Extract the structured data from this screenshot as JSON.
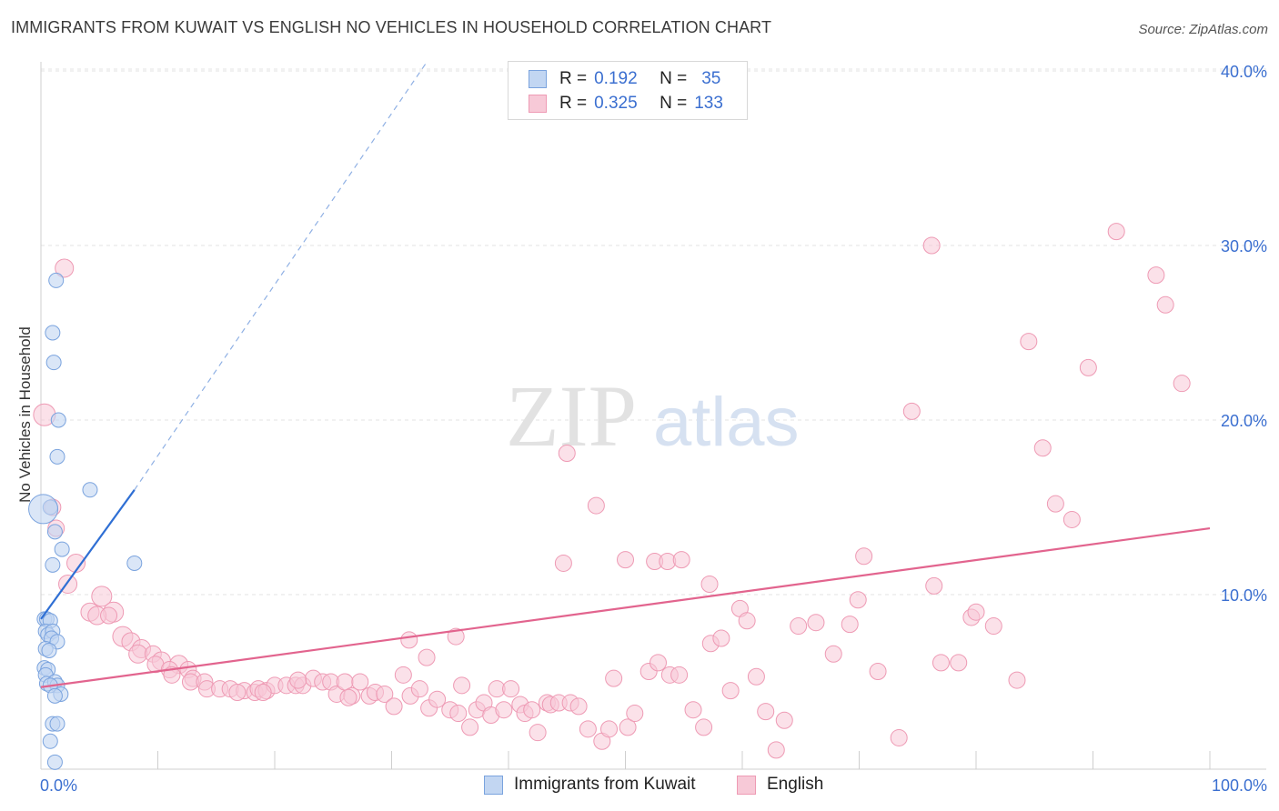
{
  "title": "IMMIGRANTS FROM KUWAIT VS ENGLISH NO VEHICLES IN HOUSEHOLD CORRELATION CHART",
  "source": "Source: ZipAtlas.com",
  "watermark": {
    "zip": "ZIP",
    "atlas": "atlas"
  },
  "legend": {
    "row1": {
      "r_label": "R =",
      "r_value": "0.192",
      "n_label": "N =",
      "n_value": "35"
    },
    "row2": {
      "r_label": "R =",
      "r_value": "0.325",
      "n_label": "N =",
      "n_value": "133"
    }
  },
  "colors": {
    "blue_fill": "#c2d6f2",
    "blue_stroke": "#7aa3de",
    "blue_line": "#2f6fd4",
    "pink_fill": "#f7c9d7",
    "pink_stroke": "#ee9ab4",
    "pink_line": "#e2648e",
    "tick_label": "#3b6fd0",
    "grid": "#e3e3e3"
  },
  "chart_data": {
    "type": "scatter",
    "title": "IMMIGRANTS FROM KUWAIT VS ENGLISH NO VEHICLES IN HOUSEHOLD CORRELATION CHART",
    "xlabel": "",
    "ylabel": "No Vehicles in Household",
    "xlim": [
      0,
      100
    ],
    "ylim": [
      0,
      42
    ],
    "x_tick_labels": [
      "0.0%",
      "100.0%"
    ],
    "y_ticks": [
      10,
      20,
      30,
      40
    ],
    "y_tick_labels": [
      "10.0%",
      "20.0%",
      "30.0%",
      "40.0%"
    ],
    "grid": true,
    "legend_position": "top-center",
    "series": [
      {
        "name": "Immigrants from Kuwait",
        "color": "#7aa3de",
        "r": 0.192,
        "n": 35,
        "trend": {
          "x": [
            0,
            8.0
          ],
          "y": [
            8.6,
            16.0
          ],
          "dashed_to": {
            "x": 33.0,
            "y": 40.5
          }
        },
        "points": [
          [
            1.3,
            28.0
          ],
          [
            1.0,
            25.0
          ],
          [
            1.1,
            23.3
          ],
          [
            1.5,
            20.0
          ],
          [
            1.4,
            17.9
          ],
          [
            4.2,
            16.0
          ],
          [
            0.8,
            15.0
          ],
          [
            1.2,
            13.6
          ],
          [
            1.8,
            12.6
          ],
          [
            8.0,
            11.8
          ],
          [
            1.0,
            11.7
          ],
          [
            0.3,
            8.6
          ],
          [
            0.5,
            8.6
          ],
          [
            0.8,
            8.5
          ],
          [
            0.4,
            7.9
          ],
          [
            0.6,
            7.7
          ],
          [
            1.0,
            7.9
          ],
          [
            0.9,
            7.5
          ],
          [
            1.4,
            7.3
          ],
          [
            0.4,
            6.9
          ],
          [
            0.7,
            6.8
          ],
          [
            0.3,
            5.8
          ],
          [
            0.6,
            5.7
          ],
          [
            0.4,
            5.4
          ],
          [
            0.5,
            4.9
          ],
          [
            1.2,
            5.0
          ],
          [
            1.4,
            4.8
          ],
          [
            0.8,
            4.8
          ],
          [
            1.7,
            4.3
          ],
          [
            1.2,
            4.2
          ],
          [
            1.0,
            2.6
          ],
          [
            1.4,
            2.6
          ],
          [
            0.8,
            1.6
          ],
          [
            1.2,
            0.4
          ],
          [
            0.2,
            14.9
          ]
        ],
        "sizes": [
          8,
          8,
          8,
          8,
          8,
          8,
          8,
          8,
          8,
          8,
          8,
          8,
          8,
          8,
          8,
          8,
          8,
          8,
          8,
          8,
          8,
          8,
          8,
          8,
          8,
          8,
          8,
          8,
          8,
          8,
          8,
          8,
          8,
          8,
          16
        ]
      },
      {
        "name": "English",
        "color": "#ee9ab4",
        "r": 0.325,
        "n": 133,
        "trend": {
          "x": [
            0,
            100
          ],
          "y": [
            4.7,
            13.8
          ]
        },
        "points": [
          [
            2.0,
            28.7
          ],
          [
            0.3,
            20.3
          ],
          [
            1.0,
            15.0
          ],
          [
            1.3,
            13.8
          ],
          [
            3.0,
            11.8
          ],
          [
            2.3,
            10.6
          ],
          [
            5.2,
            9.9
          ],
          [
            4.2,
            9.0
          ],
          [
            6.2,
            9.0
          ],
          [
            4.8,
            8.8
          ],
          [
            5.8,
            8.8
          ],
          [
            7.0,
            7.6
          ],
          [
            7.7,
            7.3
          ],
          [
            8.6,
            6.9
          ],
          [
            8.3,
            6.6
          ],
          [
            9.6,
            6.6
          ],
          [
            10.3,
            6.2
          ],
          [
            9.8,
            6.0
          ],
          [
            11.8,
            6.0
          ],
          [
            11.0,
            5.7
          ],
          [
            12.6,
            5.7
          ],
          [
            11.2,
            5.4
          ],
          [
            13.0,
            5.2
          ],
          [
            12.8,
            5.0
          ],
          [
            14.0,
            5.0
          ],
          [
            14.2,
            4.6
          ],
          [
            15.3,
            4.6
          ],
          [
            16.2,
            4.6
          ],
          [
            17.4,
            4.5
          ],
          [
            16.8,
            4.4
          ],
          [
            18.3,
            4.4
          ],
          [
            18.6,
            4.6
          ],
          [
            19.3,
            4.5
          ],
          [
            20.0,
            4.8
          ],
          [
            21.0,
            4.8
          ],
          [
            21.8,
            4.8
          ],
          [
            22.4,
            4.8
          ],
          [
            23.3,
            5.2
          ],
          [
            24.1,
            5.0
          ],
          [
            24.8,
            5.0
          ],
          [
            25.3,
            4.3
          ],
          [
            26.0,
            5.0
          ],
          [
            26.6,
            4.2
          ],
          [
            27.3,
            5.0
          ],
          [
            28.1,
            4.2
          ],
          [
            28.6,
            4.4
          ],
          [
            29.4,
            4.3
          ],
          [
            30.2,
            3.6
          ],
          [
            31.0,
            5.4
          ],
          [
            31.6,
            4.2
          ],
          [
            32.4,
            4.6
          ],
          [
            33.2,
            3.5
          ],
          [
            33.9,
            4.0
          ],
          [
            35.0,
            3.4
          ],
          [
            35.7,
            3.2
          ],
          [
            36.0,
            4.8
          ],
          [
            36.7,
            2.4
          ],
          [
            37.3,
            3.4
          ],
          [
            37.9,
            3.8
          ],
          [
            38.5,
            3.1
          ],
          [
            39.0,
            4.6
          ],
          [
            39.6,
            3.4
          ],
          [
            40.2,
            4.6
          ],
          [
            41.0,
            3.7
          ],
          [
            41.4,
            3.2
          ],
          [
            42.0,
            3.4
          ],
          [
            42.5,
            2.1
          ],
          [
            43.3,
            3.8
          ],
          [
            43.6,
            3.7
          ],
          [
            44.3,
            3.8
          ],
          [
            45.3,
            3.8
          ],
          [
            46.0,
            3.6
          ],
          [
            46.8,
            2.3
          ],
          [
            48.0,
            1.6
          ],
          [
            48.6,
            2.3
          ],
          [
            49.0,
            5.2
          ],
          [
            50.2,
            2.4
          ],
          [
            50.8,
            3.2
          ],
          [
            52.0,
            5.6
          ],
          [
            52.8,
            6.1
          ],
          [
            53.8,
            5.4
          ],
          [
            54.6,
            5.4
          ],
          [
            55.8,
            3.4
          ],
          [
            56.7,
            2.4
          ],
          [
            57.3,
            7.2
          ],
          [
            58.2,
            7.5
          ],
          [
            59.0,
            4.5
          ],
          [
            59.8,
            9.2
          ],
          [
            60.4,
            8.5
          ],
          [
            61.2,
            5.3
          ],
          [
            62.0,
            3.3
          ],
          [
            62.9,
            1.1
          ],
          [
            63.6,
            2.8
          ],
          [
            64.8,
            8.2
          ],
          [
            66.3,
            8.4
          ],
          [
            67.8,
            6.6
          ],
          [
            69.2,
            8.3
          ],
          [
            69.9,
            9.7
          ],
          [
            70.4,
            12.2
          ],
          [
            71.6,
            5.6
          ],
          [
            73.4,
            1.8
          ],
          [
            74.5,
            20.5
          ],
          [
            76.4,
            10.5
          ],
          [
            77.0,
            6.1
          ],
          [
            78.5,
            6.1
          ],
          [
            79.6,
            8.7
          ],
          [
            80.0,
            9.0
          ],
          [
            81.5,
            8.2
          ],
          [
            83.5,
            5.1
          ],
          [
            84.5,
            24.5
          ],
          [
            85.7,
            18.4
          ],
          [
            86.8,
            15.2
          ],
          [
            88.2,
            14.3
          ],
          [
            89.6,
            23.0
          ],
          [
            92.0,
            30.8
          ],
          [
            76.2,
            30.0
          ],
          [
            95.4,
            28.3
          ],
          [
            96.2,
            26.6
          ],
          [
            97.6,
            22.1
          ],
          [
            45.0,
            18.1
          ],
          [
            47.5,
            15.1
          ],
          [
            44.7,
            11.8
          ],
          [
            52.5,
            11.9
          ],
          [
            53.6,
            11.9
          ],
          [
            54.8,
            12.0
          ],
          [
            57.2,
            10.6
          ],
          [
            35.5,
            7.6
          ],
          [
            33.0,
            6.4
          ],
          [
            31.5,
            7.4
          ],
          [
            50.0,
            12.0
          ],
          [
            19.0,
            4.4
          ],
          [
            22.0,
            5.1
          ],
          [
            26.3,
            4.1
          ]
        ],
        "sizes": [
          10,
          12,
          9,
          9,
          10,
          10,
          11,
          10,
          11,
          10,
          9,
          11,
          10,
          10,
          10,
          9,
          10,
          9,
          10,
          9,
          9,
          9,
          9,
          9,
          9,
          9,
          9,
          9,
          9,
          9,
          9,
          9,
          9,
          9,
          9,
          9,
          9,
          9,
          9,
          9,
          9,
          9,
          9,
          9,
          9,
          9,
          9,
          9,
          9,
          9,
          9,
          9,
          9,
          9,
          9,
          9,
          9,
          9,
          9,
          9,
          9,
          9,
          9,
          9,
          9,
          9,
          9,
          9,
          9,
          9,
          9,
          9,
          9,
          9,
          9,
          9,
          9,
          9,
          9,
          9,
          9,
          9,
          9,
          9,
          9,
          9,
          9,
          9,
          9,
          9,
          9,
          9,
          9,
          9,
          9,
          9,
          9,
          9,
          9,
          9,
          9,
          9,
          9,
          9,
          9,
          9,
          9,
          9,
          9,
          9,
          9,
          9,
          9,
          9,
          9,
          9,
          9,
          9,
          9,
          9,
          9,
          9,
          9,
          9,
          9,
          9,
          9,
          9,
          9,
          9,
          9,
          9,
          9
        ]
      }
    ]
  },
  "bottom_legend": {
    "series1": "Immigrants from Kuwait",
    "series2": "English"
  }
}
